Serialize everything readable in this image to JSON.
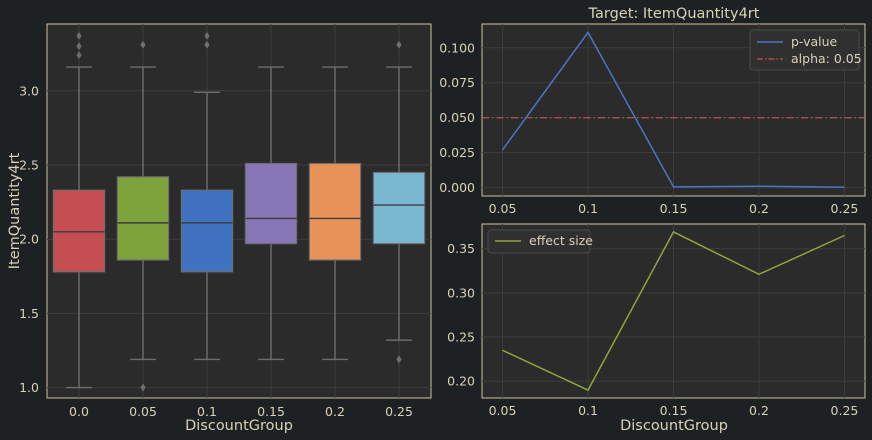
{
  "chart_data": [
    {
      "type": "box",
      "xlabel": "DiscountGroup",
      "ylabel": "ItemQuantity4rt",
      "categories": [
        "0.0",
        "0.05",
        "0.1",
        "0.15",
        "0.2",
        "0.25"
      ],
      "yticks": [
        "1.0",
        "1.5",
        "2.0",
        "2.5",
        "3.0"
      ],
      "ylim": [
        0.93,
        3.45
      ],
      "colors": [
        "#c44e52",
        "#7ea33c",
        "#3f72c0",
        "#8877b8",
        "#e8925a",
        "#7ab8d2"
      ],
      "boxes": [
        {
          "whisker_low": 1.0,
          "q1": 1.78,
          "median": 2.05,
          "q3": 2.33,
          "whisker_high": 3.16,
          "outliers": [
            3.24,
            3.3,
            3.37
          ]
        },
        {
          "whisker_low": 1.19,
          "q1": 1.86,
          "median": 2.11,
          "q3": 2.42,
          "whisker_high": 3.16,
          "outliers": [
            1.0,
            3.31
          ]
        },
        {
          "whisker_low": 1.19,
          "q1": 1.78,
          "median": 2.11,
          "q3": 2.33,
          "whisker_high": 2.99,
          "outliers": [
            3.31,
            3.37
          ]
        },
        {
          "whisker_low": 1.19,
          "q1": 1.97,
          "median": 2.14,
          "q3": 2.51,
          "whisker_high": 3.16,
          "outliers": []
        },
        {
          "whisker_low": 1.19,
          "q1": 1.86,
          "median": 2.14,
          "q3": 2.51,
          "whisker_high": 3.16,
          "outliers": []
        },
        {
          "whisker_low": 1.32,
          "q1": 1.97,
          "median": 2.23,
          "q3": 2.45,
          "whisker_high": 3.16,
          "outliers": [
            1.19,
            3.31
          ]
        }
      ]
    },
    {
      "type": "line",
      "title": "Target: ItemQuantity4rt",
      "x": [
        0.05,
        0.1,
        0.15,
        0.2,
        0.25
      ],
      "xticks": [
        "0.05",
        "0.1",
        "0.15",
        "0.2",
        "0.25"
      ],
      "yticks": [
        "0.000",
        "0.025",
        "0.050",
        "0.075",
        "0.100"
      ],
      "ylim": [
        -0.006,
        0.117
      ],
      "series": [
        {
          "name": "p-value",
          "color": "#4a76c8",
          "values": [
            0.027,
            0.111,
            0.0005,
            0.001,
            0.0003
          ]
        }
      ],
      "hline": {
        "name": "alpha: 0.05",
        "value": 0.05,
        "color": "#a94f4f"
      },
      "legend": "top-right",
      "grid": true
    },
    {
      "type": "line",
      "xlabel": "DiscountGroup",
      "x": [
        0.05,
        0.1,
        0.15,
        0.2,
        0.25
      ],
      "xticks": [
        "0.05",
        "0.1",
        "0.15",
        "0.2",
        "0.25"
      ],
      "yticks": [
        "0.20",
        "0.25",
        "0.30",
        "0.35"
      ],
      "ylim": [
        0.181,
        0.378
      ],
      "series": [
        {
          "name": "effect size",
          "color": "#8ea63a",
          "values": [
            0.235,
            0.19,
            0.369,
            0.321,
            0.365
          ]
        }
      ],
      "legend": "top-left",
      "grid": true
    }
  ]
}
